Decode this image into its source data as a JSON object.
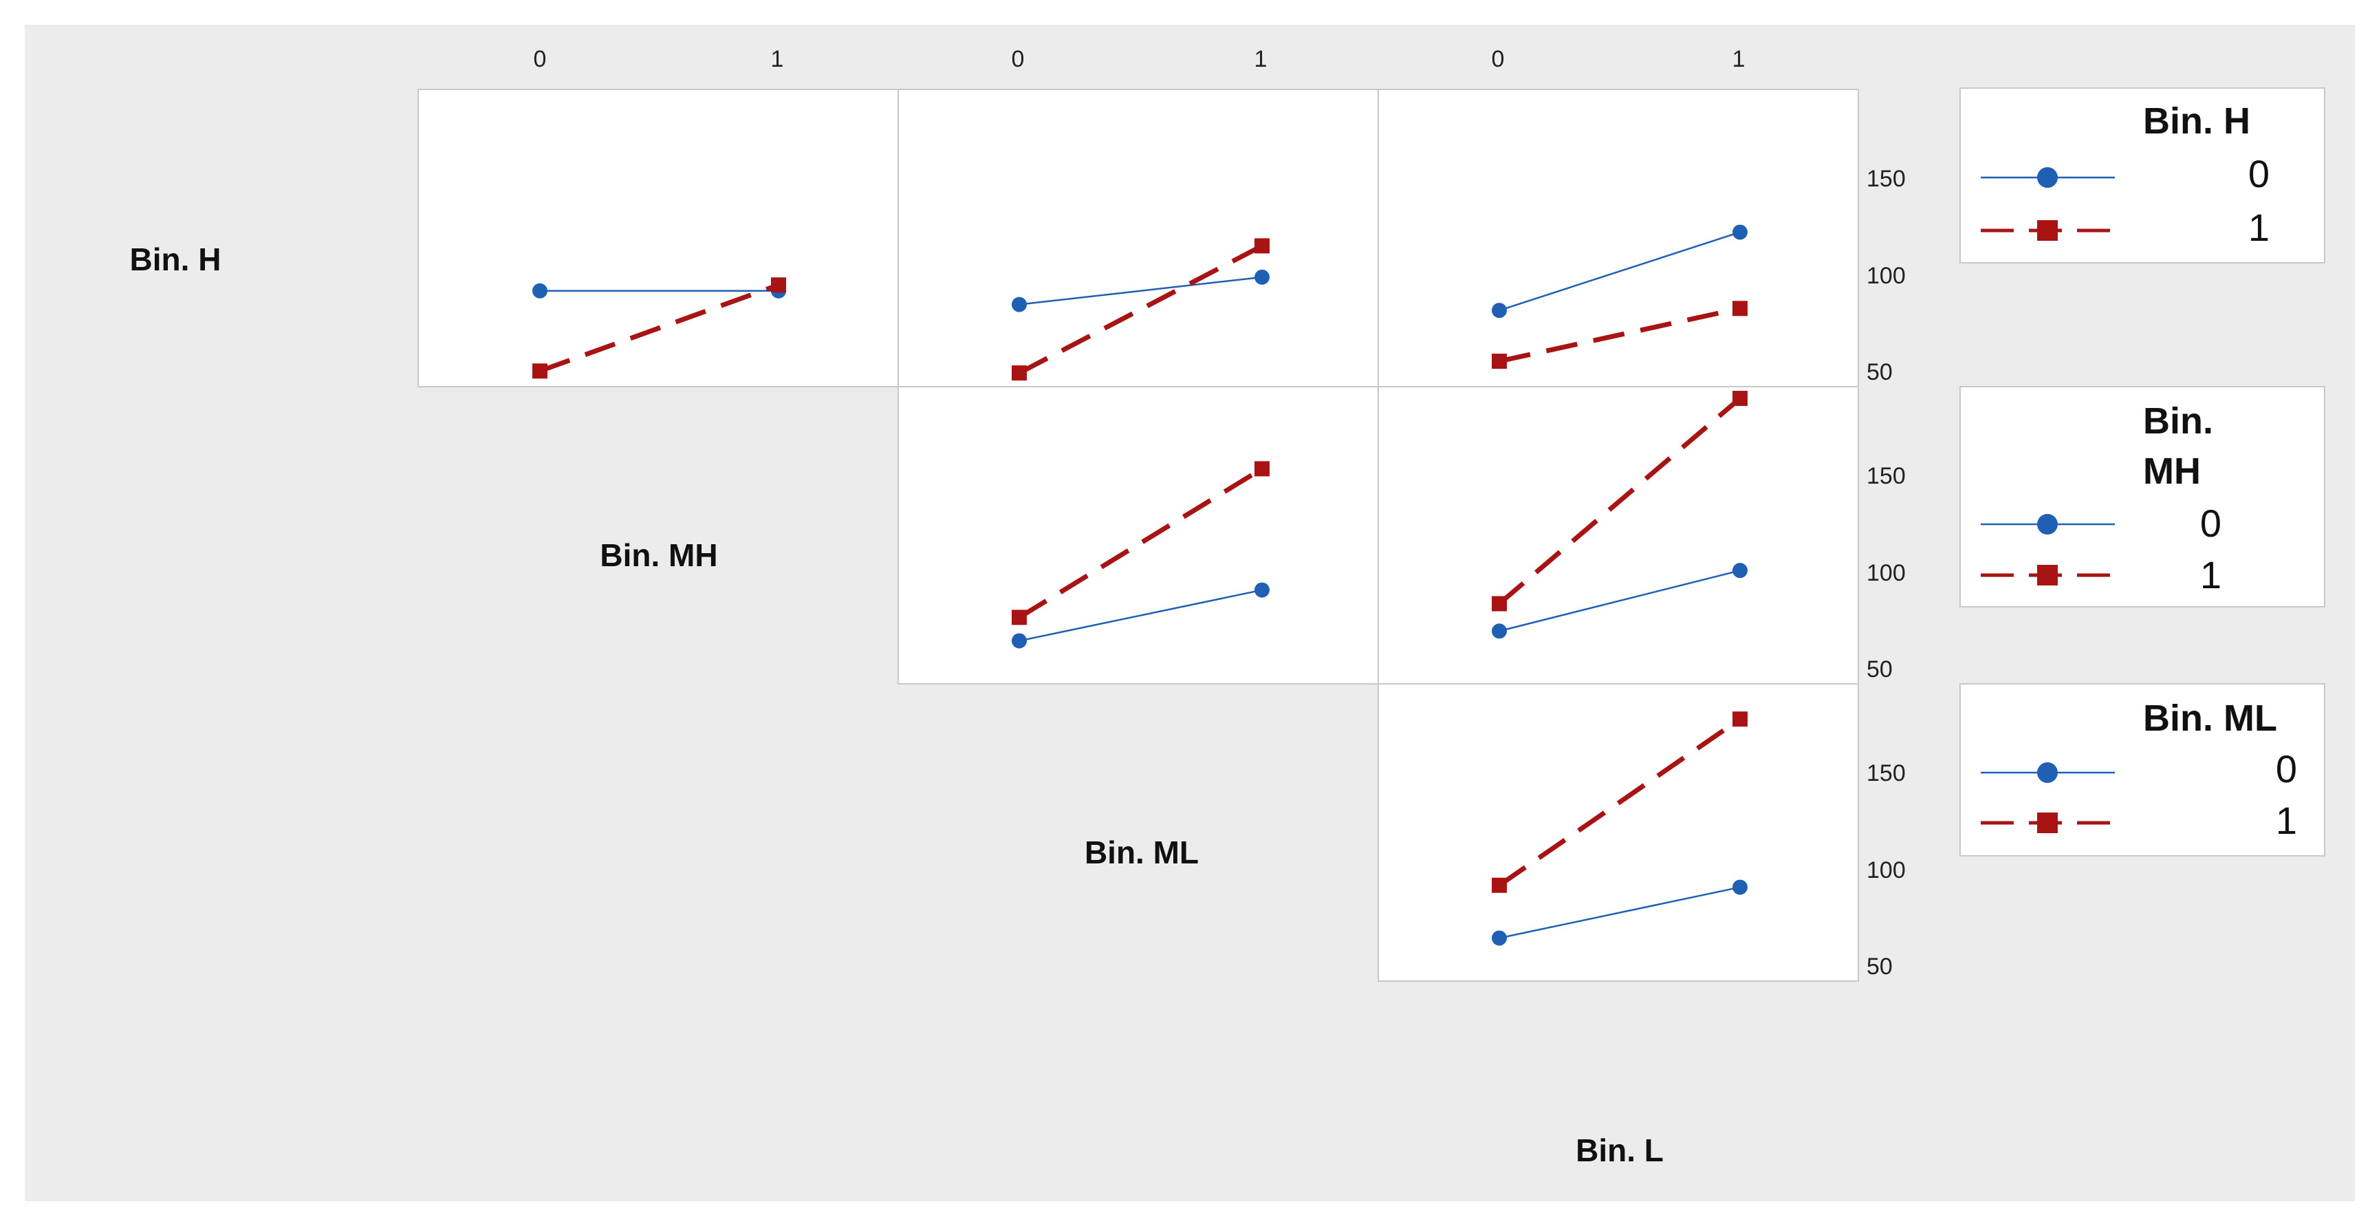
{
  "chart_data": {
    "type": "line",
    "title": "",
    "style": {
      "background": "#ececec",
      "panel_bg": "#ffffff",
      "series0_color": "#1f5fb4",
      "series1_color": "#a81313"
    },
    "x_ticks": [
      "0",
      "1"
    ],
    "y_ticks": [
      "50",
      "100",
      "150"
    ],
    "ylim": [
      45,
      197
    ],
    "factors": [
      "Bin. H",
      "Bin. MH",
      "Bin. ML",
      "Bin. L"
    ],
    "legends": [
      {
        "title_lines": [
          "Bin. H"
        ],
        "entries": [
          "0",
          "1"
        ]
      },
      {
        "title_lines": [
          "Bin.",
          "MH"
        ],
        "entries": [
          "0",
          "1"
        ]
      },
      {
        "title_lines": [
          "Bin. ML"
        ],
        "entries": [
          "0",
          "1"
        ]
      }
    ],
    "panels": [
      {
        "row_factor": "Bin. H",
        "col_factor": "Bin. MH",
        "series": [
          {
            "name": "0",
            "values": [
              94,
              94
            ]
          },
          {
            "name": "1",
            "values": [
              53,
              97
            ]
          }
        ]
      },
      {
        "row_factor": "Bin. H",
        "col_factor": "Bin. ML",
        "series": [
          {
            "name": "0",
            "values": [
              87,
              101
            ]
          },
          {
            "name": "1",
            "values": [
              52,
              117
            ]
          }
        ]
      },
      {
        "row_factor": "Bin. H",
        "col_factor": "Bin. L",
        "series": [
          {
            "name": "0",
            "values": [
              84,
              124
            ]
          },
          {
            "name": "1",
            "values": [
              58,
              85
            ]
          }
        ]
      },
      {
        "row_factor": "Bin. MH",
        "col_factor": "Bin. ML",
        "series": [
          {
            "name": "0",
            "values": [
              67,
              93
            ]
          },
          {
            "name": "1",
            "values": [
              79,
              155
            ]
          }
        ]
      },
      {
        "row_factor": "Bin. MH",
        "col_factor": "Bin. L",
        "series": [
          {
            "name": "0",
            "values": [
              72,
              103
            ]
          },
          {
            "name": "1",
            "values": [
              86,
              191
            ]
          }
        ]
      },
      {
        "row_factor": "Bin. ML",
        "col_factor": "Bin. L",
        "series": [
          {
            "name": "0",
            "values": [
              67,
              93
            ]
          },
          {
            "name": "1",
            "values": [
              94,
              179
            ]
          }
        ]
      }
    ]
  }
}
